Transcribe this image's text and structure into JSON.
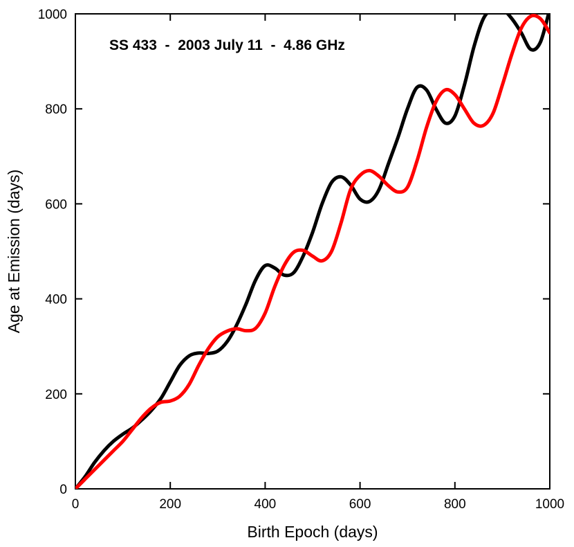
{
  "chart_data": {
    "type": "line",
    "title": "SS 433  -  2003 July 11  -  4.86 GHz",
    "xlabel": "Birth Epoch (days)",
    "ylabel": "Age at Emission (days)",
    "xlim": [
      0,
      1000
    ],
    "ylim": [
      0,
      1000
    ],
    "xticks": [
      0,
      200,
      400,
      600,
      800,
      1000
    ],
    "yticks": [
      0,
      200,
      400,
      600,
      800,
      1000
    ],
    "xtick_labels": [
      "0",
      "200",
      "400",
      "600",
      "800",
      "1000"
    ],
    "ytick_labels": [
      "0",
      "200",
      "400",
      "600",
      "800",
      "1000"
    ],
    "grid": false,
    "series": [
      {
        "name": "black",
        "color": "#000000",
        "x": [
          0,
          20,
          40,
          60,
          80,
          100,
          120,
          140,
          160,
          180,
          200,
          220,
          240,
          260,
          280,
          300,
          320,
          340,
          360,
          380,
          400,
          420,
          440,
          460,
          480,
          500,
          520,
          540,
          560,
          580,
          600,
          620,
          640,
          660,
          680,
          700,
          720,
          740,
          760,
          780,
          800,
          820,
          840,
          860,
          880,
          900,
          920,
          940,
          960,
          980,
          1000
        ],
        "values": [
          0,
          25,
          55,
          80,
          100,
          115,
          128,
          145,
          165,
          190,
          225,
          260,
          280,
          286,
          285,
          290,
          310,
          345,
          390,
          440,
          470,
          465,
          450,
          455,
          490,
          540,
          600,
          645,
          657,
          640,
          610,
          605,
          630,
          685,
          740,
          800,
          845,
          840,
          800,
          770,
          785,
          850,
          930,
          990,
          1010,
          1010,
          990,
          960,
          925,
          940,
          1010
        ]
      },
      {
        "name": "red",
        "color": "#ff0000",
        "x": [
          0,
          20,
          40,
          60,
          80,
          100,
          120,
          140,
          160,
          180,
          200,
          220,
          240,
          260,
          280,
          300,
          320,
          340,
          360,
          380,
          400,
          420,
          440,
          460,
          480,
          500,
          520,
          540,
          560,
          580,
          600,
          620,
          640,
          660,
          680,
          700,
          720,
          740,
          760,
          780,
          800,
          820,
          840,
          860,
          880,
          900,
          920,
          940,
          960,
          980,
          1000
        ],
        "values": [
          0,
          20,
          40,
          60,
          80,
          100,
          125,
          150,
          170,
          182,
          185,
          195,
          220,
          260,
          295,
          320,
          332,
          337,
          333,
          338,
          370,
          425,
          470,
          498,
          502,
          490,
          480,
          500,
          560,
          630,
          660,
          670,
          658,
          638,
          625,
          635,
          690,
          760,
          815,
          840,
          830,
          800,
          770,
          765,
          790,
          850,
          915,
          970,
          995,
          990,
          960
        ]
      }
    ]
  }
}
